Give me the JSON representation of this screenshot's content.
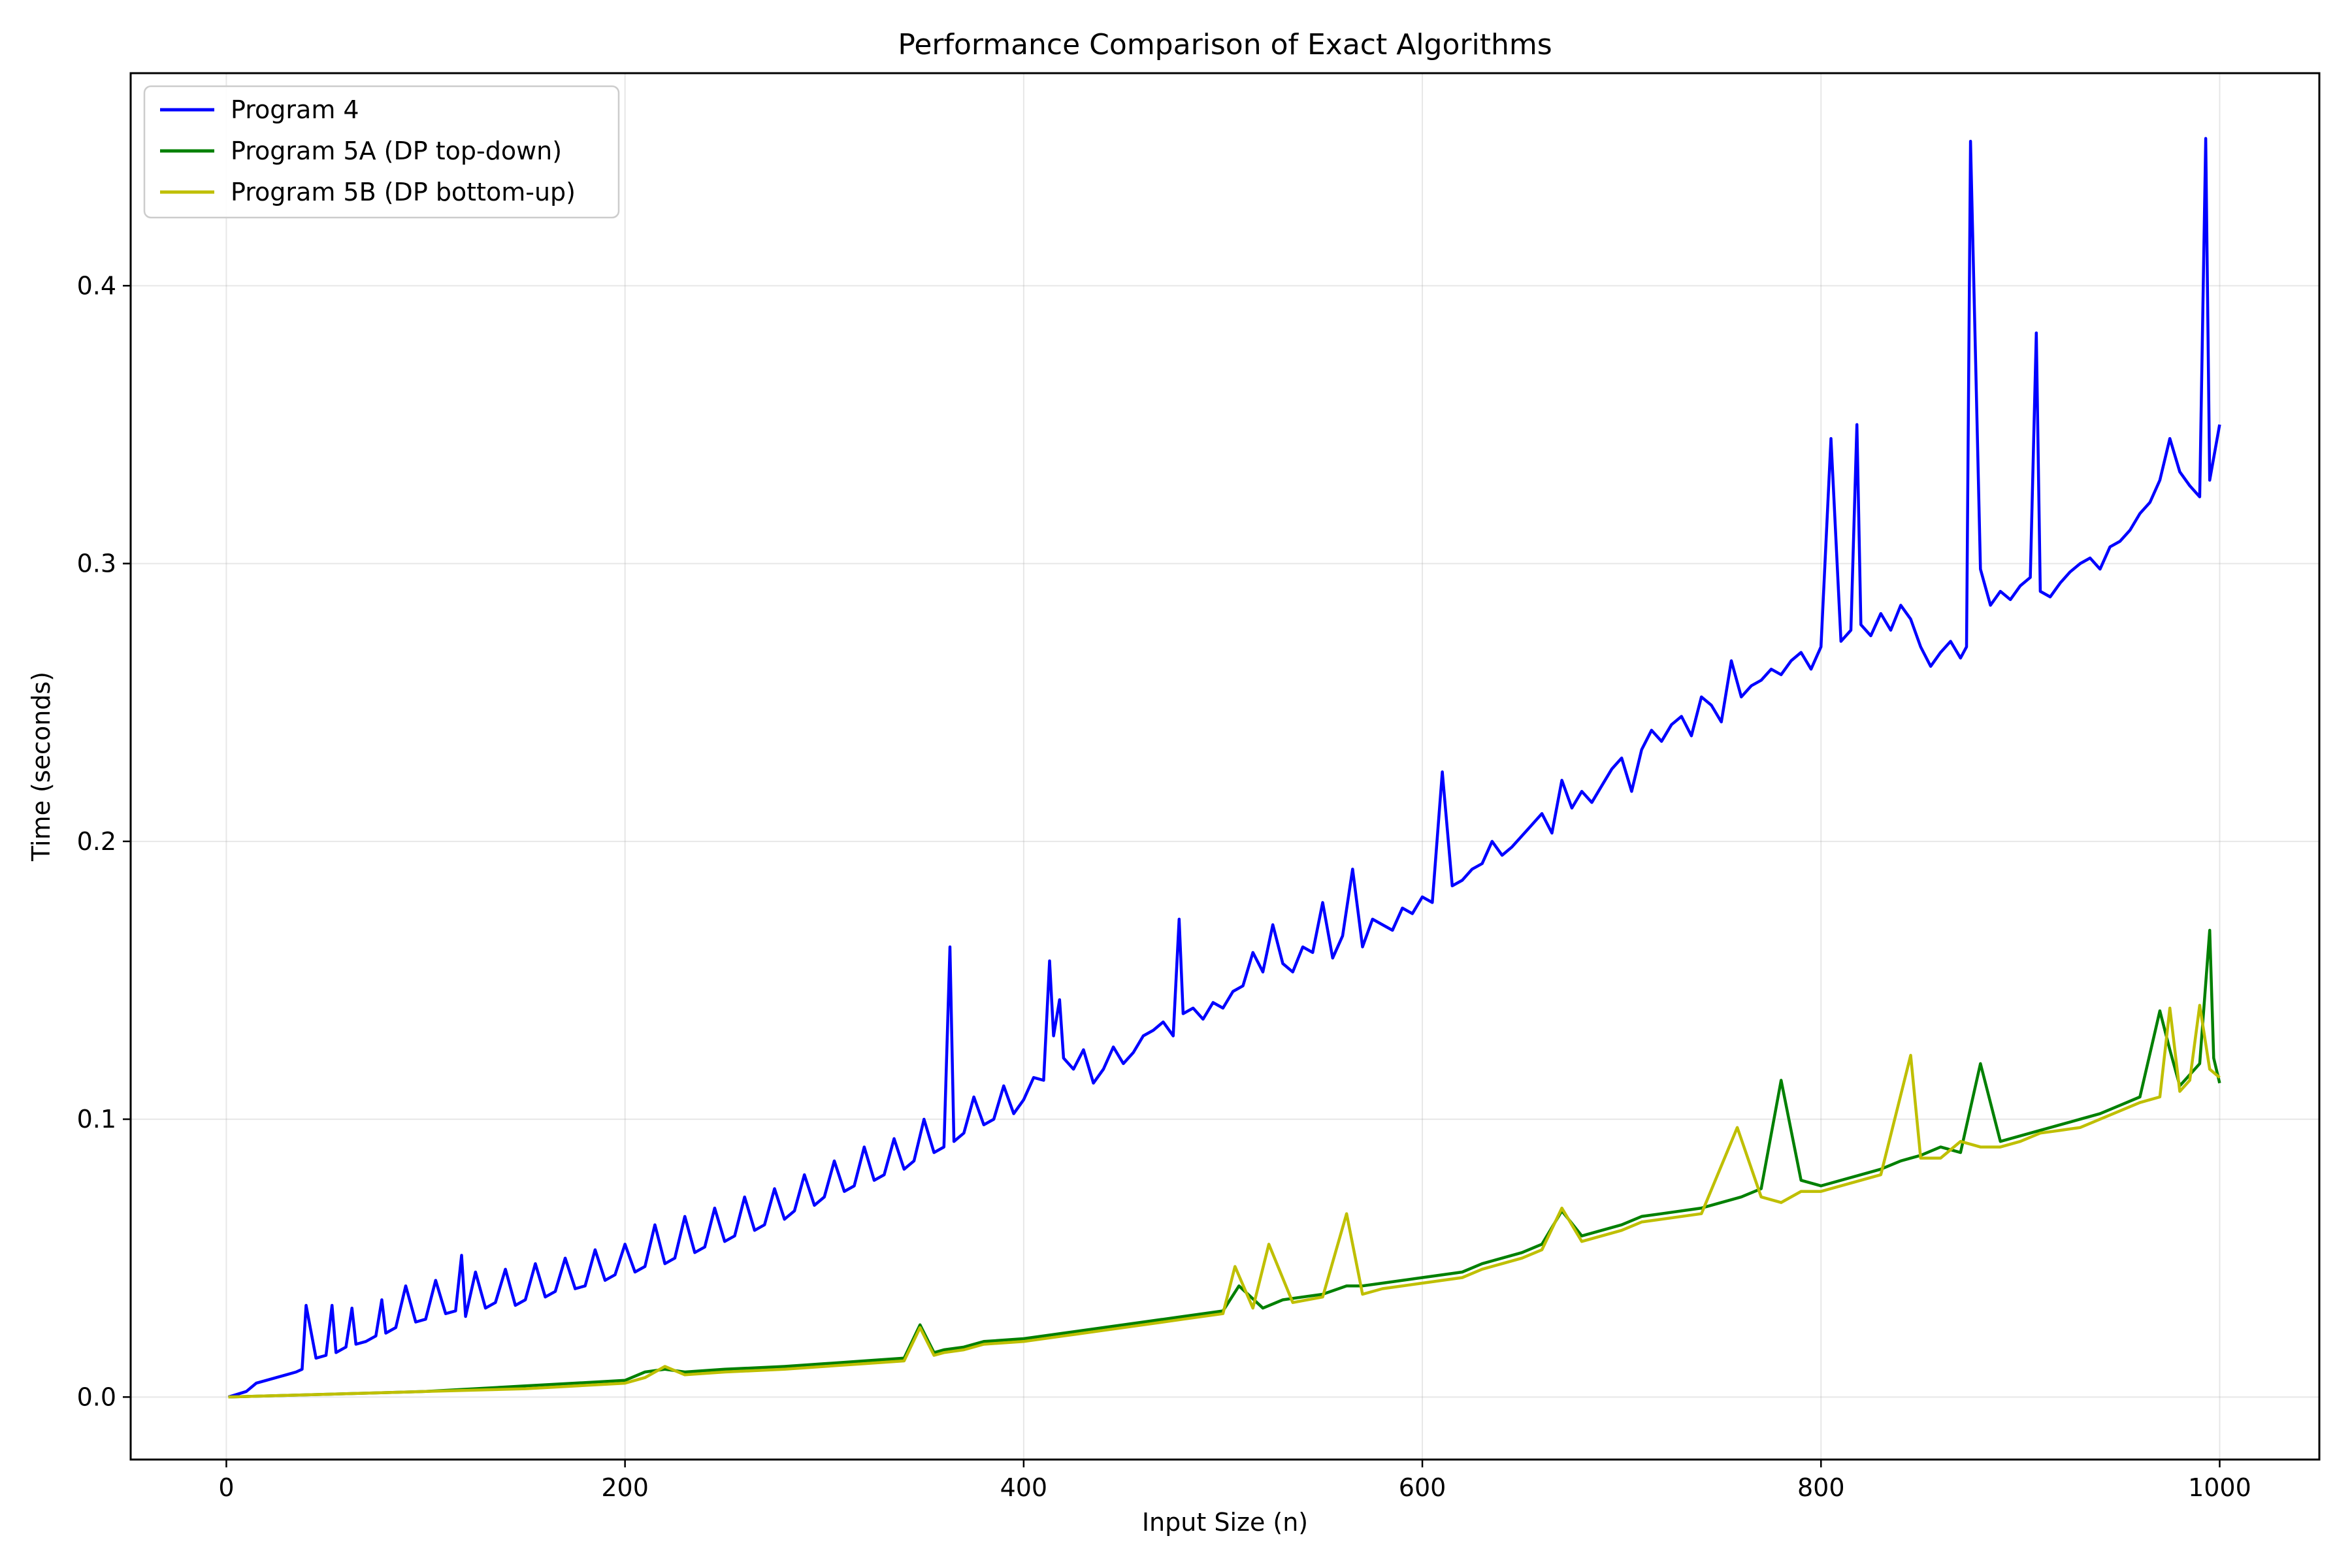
{
  "chart_data": {
    "type": "line",
    "title": "Performance Comparison of Exact Algorithms",
    "xlabel": "Input Size (n)",
    "ylabel": "Time (seconds)",
    "xlim": [
      -48,
      1050
    ],
    "ylim": [
      -0.0225,
      0.4765
    ],
    "xticks": [
      0,
      200,
      400,
      600,
      800,
      1000
    ],
    "xtick_labels": [
      "0",
      "200",
      "400",
      "600",
      "800",
      "1000"
    ],
    "yticks": [
      0.0,
      0.1,
      0.2,
      0.3,
      0.4
    ],
    "ytick_labels": [
      "0.0",
      "0.1",
      "0.2",
      "0.3",
      "0.4"
    ],
    "grid": true,
    "legend_position": "top-left",
    "series": [
      {
        "name": "Program 4",
        "color": "#0000ff",
        "x": [
          1,
          10,
          15,
          20,
          25,
          30,
          35,
          38,
          40,
          45,
          50,
          53,
          55,
          60,
          63,
          65,
          70,
          75,
          78,
          80,
          85,
          90,
          95,
          100,
          105,
          110,
          115,
          118,
          120,
          125,
          130,
          135,
          140,
          145,
          150,
          155,
          160,
          165,
          170,
          175,
          180,
          185,
          190,
          195,
          200,
          205,
          210,
          215,
          220,
          225,
          230,
          235,
          240,
          245,
          250,
          255,
          260,
          265,
          270,
          275,
          280,
          285,
          290,
          295,
          300,
          305,
          310,
          315,
          320,
          325,
          330,
          335,
          340,
          345,
          350,
          355,
          360,
          363,
          365,
          370,
          375,
          380,
          385,
          390,
          395,
          400,
          405,
          410,
          413,
          415,
          418,
          420,
          425,
          430,
          435,
          440,
          445,
          450,
          455,
          460,
          465,
          470,
          475,
          478,
          480,
          485,
          490,
          495,
          500,
          505,
          510,
          515,
          520,
          525,
          530,
          535,
          540,
          545,
          550,
          555,
          560,
          565,
          570,
          575,
          580,
          585,
          590,
          595,
          600,
          605,
          610,
          615,
          620,
          625,
          630,
          635,
          640,
          645,
          650,
          655,
          660,
          665,
          670,
          675,
          680,
          685,
          690,
          695,
          700,
          705,
          710,
          715,
          720,
          725,
          730,
          735,
          740,
          745,
          750,
          755,
          760,
          765,
          770,
          775,
          780,
          785,
          790,
          795,
          800,
          805,
          810,
          815,
          818,
          820,
          825,
          830,
          835,
          840,
          845,
          850,
          855,
          860,
          865,
          870,
          873,
          875,
          880,
          885,
          890,
          895,
          900,
          905,
          908,
          910,
          915,
          920,
          925,
          930,
          935,
          940,
          945,
          950,
          955,
          960,
          965,
          970,
          975,
          980,
          985,
          990,
          993,
          995,
          1000
        ],
        "values": [
          0.0,
          0.002,
          0.005,
          0.006,
          0.007,
          0.008,
          0.009,
          0.01,
          0.033,
          0.014,
          0.015,
          0.033,
          0.016,
          0.018,
          0.032,
          0.019,
          0.02,
          0.022,
          0.035,
          0.023,
          0.025,
          0.04,
          0.027,
          0.028,
          0.042,
          0.03,
          0.031,
          0.051,
          0.029,
          0.045,
          0.032,
          0.034,
          0.046,
          0.033,
          0.035,
          0.048,
          0.036,
          0.038,
          0.05,
          0.039,
          0.04,
          0.053,
          0.042,
          0.044,
          0.055,
          0.045,
          0.047,
          0.062,
          0.048,
          0.05,
          0.065,
          0.052,
          0.054,
          0.068,
          0.056,
          0.058,
          0.072,
          0.06,
          0.062,
          0.075,
          0.064,
          0.067,
          0.08,
          0.069,
          0.072,
          0.085,
          0.074,
          0.076,
          0.09,
          0.078,
          0.08,
          0.093,
          0.082,
          0.085,
          0.1,
          0.088,
          0.09,
          0.162,
          0.092,
          0.095,
          0.108,
          0.098,
          0.1,
          0.112,
          0.102,
          0.107,
          0.115,
          0.114,
          0.157,
          0.13,
          0.143,
          0.122,
          0.118,
          0.125,
          0.113,
          0.118,
          0.126,
          0.12,
          0.124,
          0.13,
          0.132,
          0.135,
          0.13,
          0.172,
          0.138,
          0.14,
          0.136,
          0.142,
          0.14,
          0.146,
          0.148,
          0.16,
          0.153,
          0.17,
          0.156,
          0.153,
          0.162,
          0.16,
          0.178,
          0.158,
          0.166,
          0.19,
          0.162,
          0.172,
          0.17,
          0.168,
          0.176,
          0.174,
          0.18,
          0.178,
          0.225,
          0.184,
          0.186,
          0.19,
          0.192,
          0.2,
          0.195,
          0.198,
          0.202,
          0.206,
          0.21,
          0.203,
          0.222,
          0.212,
          0.218,
          0.214,
          0.22,
          0.226,
          0.23,
          0.218,
          0.233,
          0.24,
          0.236,
          0.242,
          0.245,
          0.238,
          0.252,
          0.249,
          0.243,
          0.265,
          0.252,
          0.256,
          0.258,
          0.262,
          0.26,
          0.265,
          0.268,
          0.262,
          0.27,
          0.345,
          0.272,
          0.276,
          0.35,
          0.278,
          0.274,
          0.282,
          0.276,
          0.285,
          0.28,
          0.27,
          0.263,
          0.268,
          0.272,
          0.266,
          0.27,
          0.452,
          0.298,
          0.285,
          0.29,
          0.287,
          0.292,
          0.295,
          0.383,
          0.29,
          0.288,
          0.293,
          0.297,
          0.3,
          0.302,
          0.298,
          0.306,
          0.308,
          0.312,
          0.318,
          0.322,
          0.33,
          0.345,
          0.333,
          0.328,
          0.324,
          0.453,
          0.33,
          0.35
        ]
      },
      {
        "name": "Program 5A (DP top-down)",
        "color": "#008000",
        "x": [
          1,
          50,
          100,
          150,
          200,
          210,
          220,
          230,
          250,
          280,
          300,
          320,
          340,
          348,
          355,
          360,
          370,
          380,
          400,
          420,
          440,
          460,
          480,
          500,
          508,
          520,
          530,
          540,
          550,
          562,
          570,
          580,
          600,
          620,
          630,
          640,
          650,
          660,
          670,
          680,
          690,
          700,
          710,
          720,
          740,
          760,
          770,
          780,
          790,
          800,
          820,
          830,
          840,
          850,
          860,
          870,
          880,
          890,
          900,
          910,
          920,
          930,
          940,
          950,
          960,
          970,
          975,
          980,
          985,
          990,
          995,
          997,
          1000
        ],
        "values": [
          0.0,
          0.001,
          0.002,
          0.004,
          0.006,
          0.009,
          0.01,
          0.009,
          0.01,
          0.011,
          0.012,
          0.013,
          0.014,
          0.026,
          0.016,
          0.017,
          0.018,
          0.02,
          0.021,
          0.023,
          0.025,
          0.027,
          0.029,
          0.031,
          0.04,
          0.032,
          0.035,
          0.036,
          0.037,
          0.04,
          0.04,
          0.041,
          0.043,
          0.045,
          0.048,
          0.05,
          0.052,
          0.055,
          0.067,
          0.058,
          0.06,
          0.062,
          0.065,
          0.066,
          0.068,
          0.072,
          0.075,
          0.114,
          0.078,
          0.076,
          0.08,
          0.082,
          0.085,
          0.087,
          0.09,
          0.088,
          0.12,
          0.092,
          0.094,
          0.096,
          0.098,
          0.1,
          0.102,
          0.105,
          0.108,
          0.139,
          0.125,
          0.112,
          0.116,
          0.12,
          0.168,
          0.122,
          0.113
        ]
      },
      {
        "name": "Program 5B (DP bottom-up)",
        "color": "#bfbf00",
        "x": [
          1,
          50,
          100,
          150,
          200,
          210,
          220,
          230,
          250,
          280,
          300,
          320,
          340,
          348,
          355,
          360,
          370,
          380,
          400,
          420,
          440,
          460,
          480,
          500,
          506,
          515,
          523,
          535,
          550,
          562,
          570,
          580,
          600,
          620,
          630,
          640,
          650,
          660,
          670,
          680,
          690,
          700,
          710,
          720,
          740,
          758,
          770,
          780,
          790,
          800,
          820,
          830,
          845,
          850,
          860,
          870,
          880,
          890,
          900,
          910,
          920,
          930,
          940,
          950,
          960,
          970,
          975,
          980,
          985,
          990,
          995,
          1000
        ],
        "values": [
          0.0,
          0.001,
          0.002,
          0.003,
          0.005,
          0.007,
          0.011,
          0.008,
          0.009,
          0.01,
          0.011,
          0.012,
          0.013,
          0.025,
          0.015,
          0.016,
          0.017,
          0.019,
          0.02,
          0.022,
          0.024,
          0.026,
          0.028,
          0.03,
          0.047,
          0.032,
          0.055,
          0.034,
          0.036,
          0.066,
          0.037,
          0.039,
          0.041,
          0.043,
          0.046,
          0.048,
          0.05,
          0.053,
          0.068,
          0.056,
          0.058,
          0.06,
          0.063,
          0.064,
          0.066,
          0.097,
          0.072,
          0.07,
          0.074,
          0.074,
          0.078,
          0.08,
          0.123,
          0.086,
          0.086,
          0.092,
          0.09,
          0.09,
          0.092,
          0.095,
          0.096,
          0.097,
          0.1,
          0.103,
          0.106,
          0.108,
          0.14,
          0.11,
          0.114,
          0.141,
          0.118,
          0.115
        ]
      }
    ]
  }
}
